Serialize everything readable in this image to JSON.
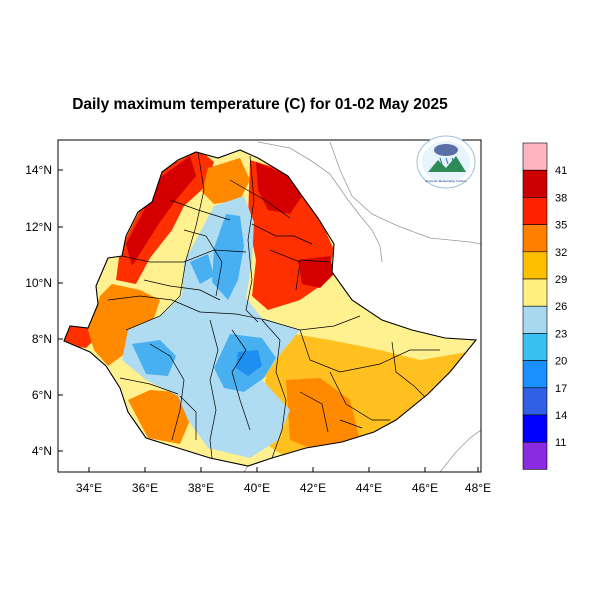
{
  "title": "Daily maximum temperature (C) for 01-02 May 2025",
  "lat_ticks": [
    "14°N",
    "12°N",
    "10°N",
    "8°N",
    "6°N",
    "4°N"
  ],
  "lon_ticks": [
    "34°E",
    "36°E",
    "38°E",
    "40°E",
    "42°E",
    "44°E",
    "46°E",
    "48°E"
  ],
  "logo_caption": "Ethiopian Meteorology Institute",
  "legend": {
    "labels": [
      "41",
      "38",
      "35",
      "32",
      "29",
      "26",
      "23",
      "20",
      "17",
      "14",
      "11"
    ],
    "colors": [
      "#ffb6c1",
      "#cc0000",
      "#ff2200",
      "#ff8000",
      "#ffbf00",
      "#fff080",
      "#a8d8f0",
      "#38c0f0",
      "#1a90ff",
      "#3060e8",
      "#0000ff",
      "#8a2be2"
    ]
  },
  "colors": {
    "very_hot": "#d40000",
    "hot": "#ff3000",
    "warm": "#ff8a00",
    "mild_warm": "#ffc020",
    "mild": "#fff090",
    "cool": "#b0dcf2",
    "cold": "#48b0f0",
    "colder": "#1e8ff0",
    "border": "#000000",
    "neighbor_border": "#999999"
  }
}
